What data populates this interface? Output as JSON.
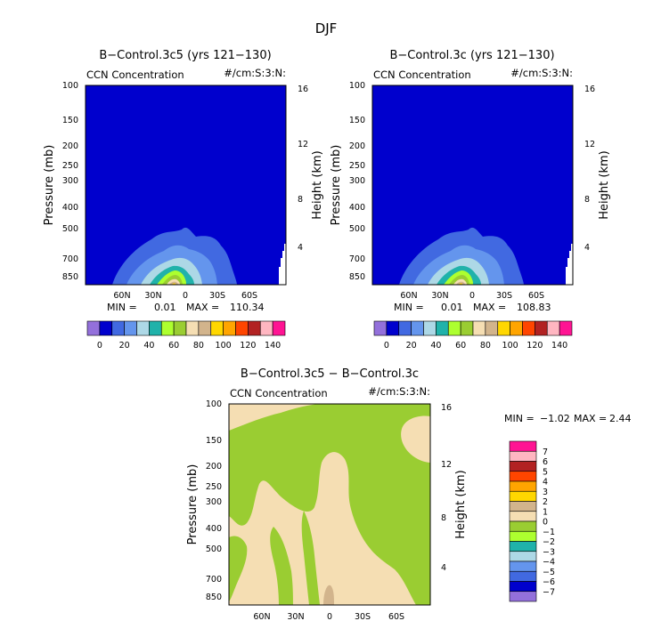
{
  "chart_data": {
    "type": "heatmap",
    "title": "DJF",
    "colorbar_colors": [
      "#9370DB",
      "#0000CD",
      "#4169E1",
      "#6495ED",
      "#ADD8E6",
      "#20B2AA",
      "#ADFF2F",
      "#9ACD32",
      "#F5DEB3",
      "#D2B48C",
      "#FFD700",
      "#FFA500",
      "#FF4500",
      "#B22222",
      "#FFB6C1",
      "#FF1493"
    ],
    "panels": [
      {
        "title": "B−Control.3c5 (yrs 121−130)",
        "left_label": "CCN Concentration",
        "right_label": "#/cm:S:3:N:",
        "ylabel": "Pressure (mb)",
        "y2label": "Height (km)",
        "pressure_ticks": [
          "100",
          "150",
          "200",
          "250",
          "300",
          "400",
          "500",
          "700",
          "850"
        ],
        "height_ticks": [
          "16",
          "12",
          "8",
          "4"
        ],
        "lat_ticks": [
          "60N",
          "30N",
          "0",
          "30S",
          "60S"
        ],
        "min_label": "MIN =",
        "min_value": "0.01",
        "max_label": "MAX =",
        "max_value": "110.34",
        "colorbar_labels": [
          "0",
          "20",
          "40",
          "60",
          "80",
          "100",
          "120",
          "140"
        ]
      },
      {
        "title": "B−Control.3c (yrs 121−130)",
        "left_label": "CCN Concentration",
        "right_label": "#/cm:S:3:N:",
        "ylabel": "Pressure (mb)",
        "y2label": "Height (km)",
        "pressure_ticks": [
          "100",
          "150",
          "200",
          "250",
          "300",
          "400",
          "500",
          "700",
          "850"
        ],
        "height_ticks": [
          "16",
          "12",
          "8",
          "4"
        ],
        "lat_ticks": [
          "60N",
          "30N",
          "0",
          "30S",
          "60S"
        ],
        "min_label": "MIN =",
        "min_value": "0.01",
        "max_label": "MAX =",
        "max_value": "108.83",
        "colorbar_labels": [
          "0",
          "20",
          "40",
          "60",
          "80",
          "100",
          "120",
          "140"
        ]
      },
      {
        "title": "B−Control.3c5 − B−Control.3c",
        "left_label": "CCN Concentration",
        "right_label": "#/cm:S:3:N:",
        "ylabel": "Pressure (mb)",
        "y2label": "Height (km)",
        "pressure_ticks": [
          "100",
          "150",
          "200",
          "250",
          "300",
          "400",
          "500",
          "700",
          "850"
        ],
        "height_ticks": [
          "16",
          "12",
          "8",
          "4"
        ],
        "lat_ticks": [
          "60N",
          "30N",
          "0",
          "30S",
          "60S"
        ],
        "min_label": "MIN =",
        "min_value": "−1.02",
        "max_label": "MAX =",
        "max_value": "2.44",
        "colorbar_labels": [
          "7",
          "6",
          "5",
          "4",
          "3",
          "2",
          "1",
          "0",
          "−1",
          "−2",
          "−3",
          "−4",
          "−5",
          "−6",
          "−7"
        ]
      }
    ]
  }
}
